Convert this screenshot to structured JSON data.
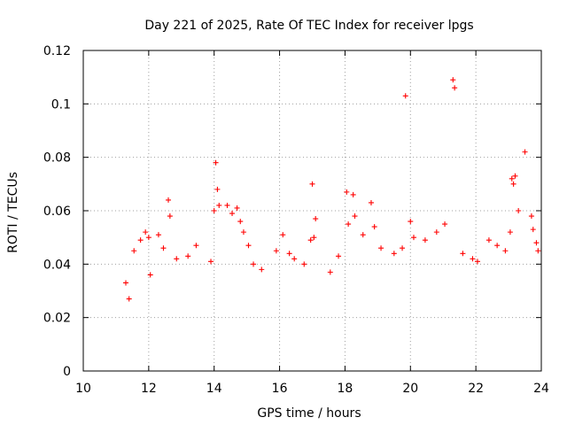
{
  "chart_data": {
    "type": "scatter",
    "title": "Day 221 of 2025, Rate Of TEC Index for receiver lpgs",
    "xlabel": "GPS time / hours",
    "ylabel": "ROTI / TECUs",
    "xlim": [
      10,
      24
    ],
    "ylim": [
      0,
      0.12
    ],
    "xticks": [
      10,
      12,
      14,
      16,
      18,
      20,
      22,
      24
    ],
    "yticks": [
      0,
      0.02,
      0.04,
      0.06,
      0.08,
      0.1,
      0.12
    ],
    "xtick_labels": [
      "10",
      "12",
      "14",
      "16",
      "18",
      "20",
      "22",
      "24"
    ],
    "ytick_labels": [
      "0",
      "0.02",
      "0.04",
      "0.06",
      "0.08",
      "0.1",
      "0.12"
    ],
    "grid": true,
    "marker": "+",
    "color": "#ff0000",
    "series": [
      {
        "name": "ROTI",
        "x": [
          11.3,
          11.4,
          11.55,
          11.75,
          11.9,
          12.0,
          12.05,
          12.3,
          12.45,
          12.6,
          12.65,
          12.85,
          13.2,
          13.45,
          13.9,
          14.0,
          14.05,
          14.1,
          14.15,
          14.4,
          14.55,
          14.7,
          14.8,
          14.9,
          15.05,
          15.2,
          15.45,
          15.9,
          16.1,
          16.3,
          16.45,
          16.75,
          16.95,
          17.0,
          17.05,
          17.1,
          17.55,
          17.8,
          18.05,
          18.1,
          18.25,
          18.3,
          18.55,
          18.8,
          18.9,
          19.1,
          19.5,
          19.75,
          19.85,
          20.0,
          20.1,
          20.45,
          20.8,
          21.05,
          21.3,
          21.35,
          21.6,
          21.9,
          22.05,
          22.4,
          22.65,
          22.9,
          23.05,
          23.1,
          23.15,
          23.2,
          23.3,
          23.5,
          23.7,
          23.75,
          23.85,
          23.9
        ],
        "y": [
          0.033,
          0.027,
          0.045,
          0.049,
          0.052,
          0.05,
          0.036,
          0.051,
          0.046,
          0.064,
          0.058,
          0.042,
          0.043,
          0.047,
          0.041,
          0.06,
          0.078,
          0.068,
          0.062,
          0.062,
          0.059,
          0.061,
          0.056,
          0.052,
          0.047,
          0.04,
          0.038,
          0.045,
          0.051,
          0.044,
          0.042,
          0.04,
          0.049,
          0.07,
          0.05,
          0.057,
          0.037,
          0.043,
          0.067,
          0.055,
          0.066,
          0.058,
          0.051,
          0.063,
          0.054,
          0.046,
          0.044,
          0.046,
          0.103,
          0.056,
          0.05,
          0.049,
          0.052,
          0.055,
          0.109,
          0.106,
          0.044,
          0.042,
          0.041,
          0.049,
          0.047,
          0.045,
          0.052,
          0.072,
          0.07,
          0.073,
          0.06,
          0.082,
          0.058,
          0.053,
          0.048,
          0.045
        ]
      }
    ]
  }
}
